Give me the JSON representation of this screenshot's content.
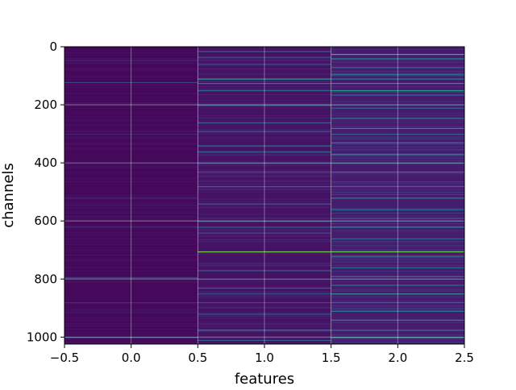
{
  "chart_data": {
    "type": "heatmap",
    "title": "",
    "xlabel": "features",
    "ylabel": "channels",
    "xlim": [
      -0.5,
      2.5
    ],
    "ylim": [
      1024,
      0
    ],
    "y_inverted": true,
    "grid": true,
    "colormap": "viridis",
    "value_range": [
      0,
      1
    ],
    "x_ticks": [
      -0.5,
      0.0,
      0.5,
      1.0,
      1.5,
      2.0,
      2.5
    ],
    "x_tick_labels": [
      "−0.5",
      "0.0",
      "0.5",
      "1.0",
      "1.5",
      "2.0",
      "2.5"
    ],
    "y_ticks": [
      0,
      200,
      400,
      600,
      800,
      1000
    ],
    "y_tick_labels": [
      "0",
      "200",
      "400",
      "600",
      "800",
      "1000"
    ],
    "n_rows": 1024,
    "columns": [
      {
        "feature": 0,
        "base_value": 0.02,
        "bright_rows": [
          [
            122,
            0.22
          ],
          [
            300,
            0.12
          ],
          [
            620,
            0.15
          ],
          [
            795,
            0.35
          ],
          [
            1000,
            0.3
          ],
          [
            880,
            0.14
          ],
          [
            45,
            0.1
          ],
          [
            520,
            0.12
          ]
        ]
      },
      {
        "feature": 1,
        "base_value": 0.05,
        "bright_rows": [
          [
            15,
            0.35
          ],
          [
            35,
            0.3
          ],
          [
            60,
            0.25
          ],
          [
            110,
            0.6
          ],
          [
            125,
            0.4
          ],
          [
            150,
            0.35
          ],
          [
            200,
            0.3
          ],
          [
            260,
            0.35
          ],
          [
            290,
            0.3
          ],
          [
            340,
            0.45
          ],
          [
            360,
            0.35
          ],
          [
            400,
            0.25
          ],
          [
            430,
            0.3
          ],
          [
            480,
            0.3
          ],
          [
            540,
            0.35
          ],
          [
            600,
            0.3
          ],
          [
            620,
            0.35
          ],
          [
            640,
            0.3
          ],
          [
            705,
            0.8
          ],
          [
            770,
            0.3
          ],
          [
            830,
            0.35
          ],
          [
            850,
            0.3
          ],
          [
            880,
            0.25
          ],
          [
            920,
            0.3
          ],
          [
            975,
            0.5
          ],
          [
            1010,
            0.3
          ]
        ]
      },
      {
        "feature": 2,
        "base_value": 0.08,
        "bright_rows": [
          [
            25,
            0.65
          ],
          [
            40,
            0.5
          ],
          [
            70,
            0.35
          ],
          [
            95,
            0.45
          ],
          [
            110,
            0.4
          ],
          [
            125,
            0.55
          ],
          [
            150,
            0.6
          ],
          [
            165,
            0.4
          ],
          [
            210,
            0.35
          ],
          [
            245,
            0.4
          ],
          [
            280,
            0.5
          ],
          [
            300,
            0.35
          ],
          [
            330,
            0.4
          ],
          [
            370,
            0.55
          ],
          [
            400,
            0.35
          ],
          [
            430,
            0.45
          ],
          [
            480,
            0.35
          ],
          [
            520,
            0.5
          ],
          [
            560,
            0.4
          ],
          [
            590,
            0.35
          ],
          [
            620,
            0.55
          ],
          [
            660,
            0.35
          ],
          [
            705,
            0.8
          ],
          [
            720,
            0.45
          ],
          [
            760,
            0.35
          ],
          [
            790,
            0.45
          ],
          [
            820,
            0.4
          ],
          [
            850,
            0.6
          ],
          [
            880,
            0.35
          ],
          [
            910,
            0.4
          ],
          [
            940,
            0.5
          ],
          [
            975,
            0.45
          ],
          [
            1000,
            0.55
          ]
        ]
      }
    ]
  }
}
